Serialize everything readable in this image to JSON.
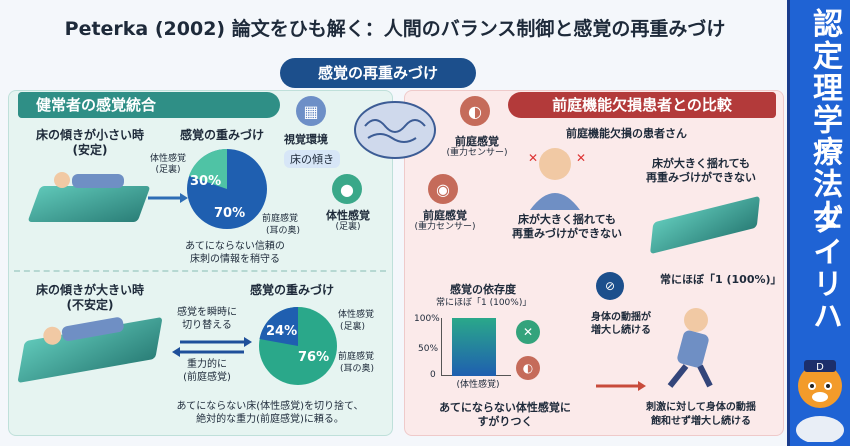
{
  "title": "Peterka (2002) 論文をひも解く：人間のバランス制御と感覚の再重みづけ",
  "sidebar": {
    "line1": "認定理学療法士",
    "line2": "ダイリハ"
  },
  "center": {
    "header": "感覚の再重みづけ",
    "visual": "視覚環境",
    "floor_tilt": "床の傾き",
    "somato": "体性感覚",
    "somato_sub": "(足裏)",
    "vest1": "前庭感覚",
    "vest1_sub": "(重力センサー)",
    "vest2": "前庭感覚",
    "vest2_sub": "(重力センサー)"
  },
  "left": {
    "header": "健常者の感覚統合",
    "top": {
      "cond": "床の傾きが小さい時",
      "cond_sub": "(安定)",
      "weight_title": "感覚の重みづけ",
      "somato": "体性感覚",
      "somato_sub": "(足裏)",
      "vest": "前庭感覚",
      "vest_sub": "(耳の奥)",
      "pct_somato": "30%",
      "pct_vest": "70%",
      "caption1": "あてにならない信頼の",
      "caption2": "床刺の情報を稍守る"
    },
    "bottom": {
      "cond": "床の傾きが大きい時",
      "cond_sub": "(不安定)",
      "weight_title": "感覚の重みづけ",
      "switch1": "感覚を瞬時に",
      "switch2": "切り替える",
      "grav1": "重力的に",
      "grav2": "(前庭感覚)",
      "somato": "体性感覚",
      "somato_sub": "(足裏)",
      "vest": "前庭感覚",
      "vest_sub": "(耳の奥)",
      "pct_somato": "24%",
      "pct_vest": "76%",
      "caption1": "あてにならない床(体性感覚)を切り捨て、",
      "caption2": "絶対的な重力(前庭感覚)に頼る。"
    }
  },
  "right": {
    "header": "前庭機能欠損患者との比較",
    "patient_title": "前庭機能欠損の患者さん",
    "note1a": "床が大きく揺れても",
    "note1b": "再重みづけができない",
    "note2a": "床が大きく揺れても",
    "note2b": "再重みづけができない",
    "dependence_title": "感覚の依存度",
    "always_one_small": "常にほぼ「1 (100%)」",
    "always_one": "常にほぼ「1 (100%)」",
    "axis_100": "100%",
    "axis_50": "50%",
    "axis_0": "0",
    "bar_label": "(体性感覚)",
    "bar_value": 1.0,
    "sway1": "身体の動揺が",
    "sway2": "増大し続ける",
    "caption1": "あてにならない体性感覚に",
    "caption2": "すがりつく",
    "caption3": "刺激に対して身体の動揺",
    "caption4": "飽和せず増大し続ける"
  },
  "colors": {
    "accent_teal": "#2f8f86",
    "accent_red": "#b33a3a",
    "accent_navy": "#1c4f8c",
    "sidebar_blue": "#1f63d4"
  }
}
